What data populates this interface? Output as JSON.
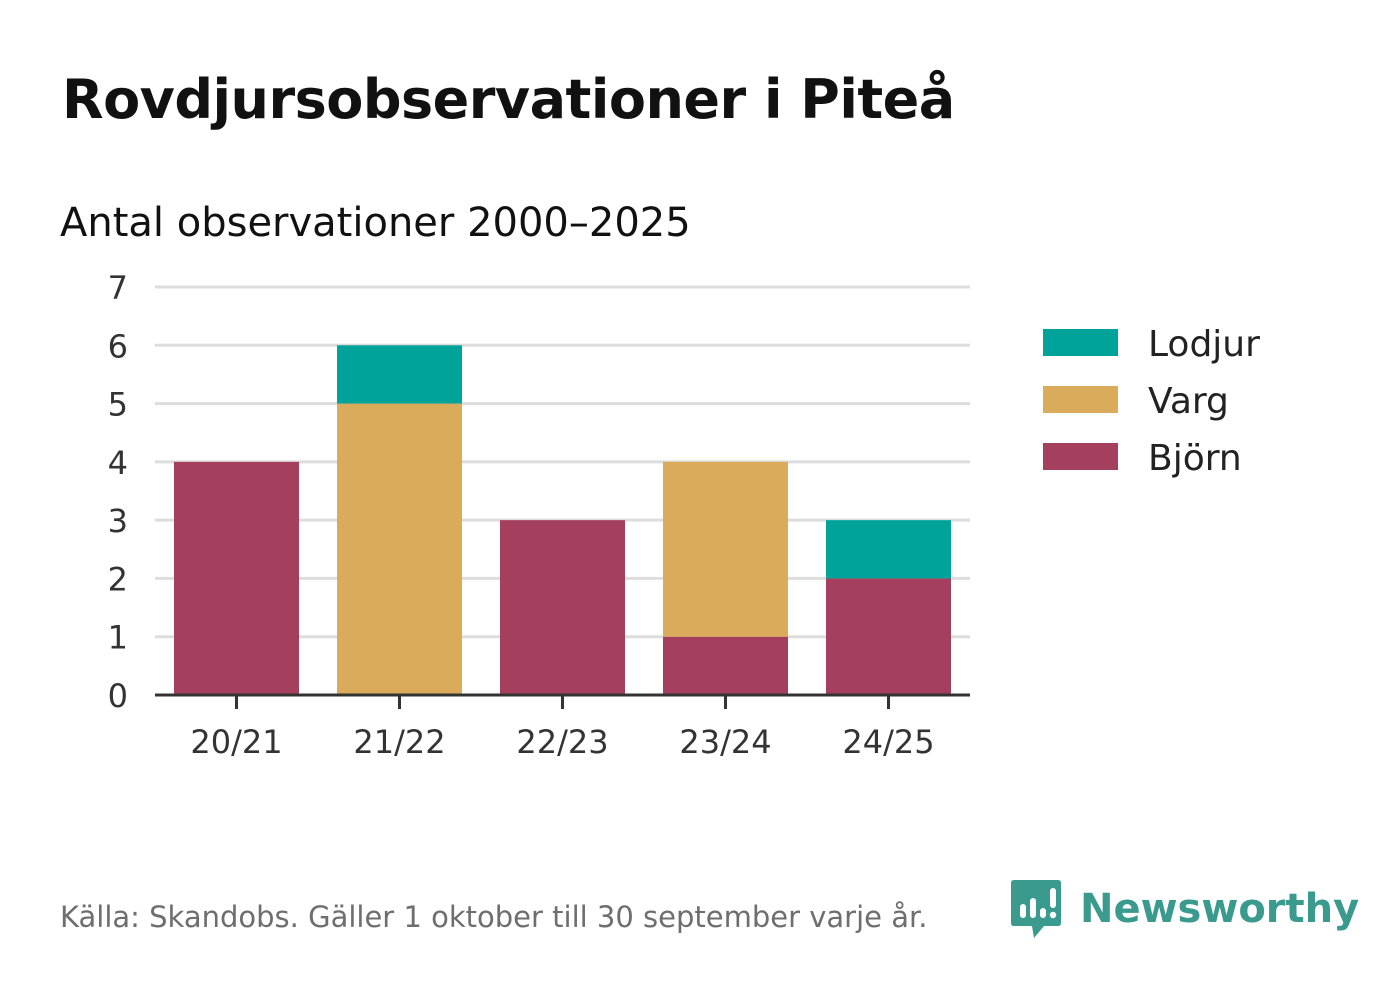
{
  "title": "Rovdjursobservationer i Piteå",
  "subtitle": "Antal observationer 2000–2025",
  "source": "Källa: Skandobs. Gäller 1 oktober till 30 september varje år.",
  "brand": "Newsworthy",
  "colors": {
    "Björn": "#a4405e",
    "Varg": "#dbab5c",
    "Lodjur": "#00a399",
    "grid": "#dddddd",
    "axis": "#333333",
    "brand": "#3a9a8e"
  },
  "chart_data": {
    "type": "bar",
    "stacked": true,
    "title": "Rovdjursobservationer i Piteå",
    "subtitle": "Antal observationer 2000–2025",
    "xlabel": "",
    "ylabel": "",
    "ylim": [
      0,
      7
    ],
    "yticks": [
      "0",
      "1",
      "2",
      "3",
      "4",
      "5",
      "6",
      "7"
    ],
    "categories": [
      "20/21",
      "21/22",
      "22/23",
      "23/24",
      "24/25"
    ],
    "series": [
      {
        "name": "Björn",
        "values": [
          4,
          0,
          3,
          1,
          2
        ]
      },
      {
        "name": "Varg",
        "values": [
          0,
          5,
          0,
          3,
          0
        ]
      },
      {
        "name": "Lodjur",
        "values": [
          0,
          1,
          0,
          0,
          1
        ]
      }
    ],
    "legend": [
      "Lodjur",
      "Varg",
      "Björn"
    ],
    "legend_position": "right",
    "grid": true
  }
}
